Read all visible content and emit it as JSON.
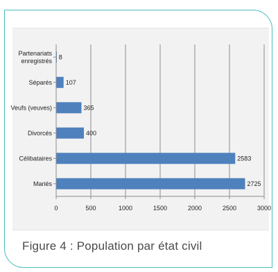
{
  "caption": "Figure 4 : Population par état civil",
  "chart_data": {
    "type": "bar",
    "orientation": "horizontal",
    "title": "",
    "xlabel": "",
    "ylabel": "",
    "categories": [
      [
        "Partenariats",
        "enregistrés"
      ],
      [
        "Séparés"
      ],
      [
        "Veufs (veuves)"
      ],
      [
        "Divorcés"
      ],
      [
        "Célibataires"
      ],
      [
        "Mariés"
      ]
    ],
    "values": [
      8,
      107,
      365,
      400,
      2583,
      2725
    ],
    "xlim": [
      0,
      3000
    ],
    "xticks": [
      0,
      500,
      1000,
      1500,
      2000,
      2500,
      3000
    ],
    "grid": "vertical",
    "legend": "none",
    "bar_color": "#4f81bd",
    "grid_color": "#8c8c8c",
    "axis_color": "#8c8c8c",
    "frame_color": "#49bcb9",
    "caption_color": "#4a4a4a"
  }
}
